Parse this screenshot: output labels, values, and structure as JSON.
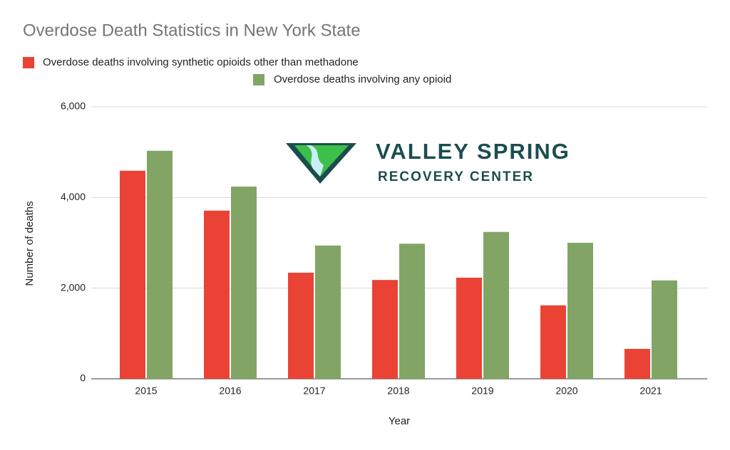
{
  "chart_data": {
    "type": "bar",
    "title": "Overdose Death Statistics in New York State",
    "x_label": "Year",
    "y_label": "Number of deaths",
    "categories": [
      "2015",
      "2016",
      "2017",
      "2018",
      "2019",
      "2020",
      "2021"
    ],
    "series": [
      {
        "name": "Overdose deaths involving synthetic opioids other than methadone",
        "color": "#ea4335",
        "values": [
          4590,
          3710,
          2340,
          2180,
          2230,
          1620,
          660
        ]
      },
      {
        "name": "Overdose deaths involving any opioid",
        "color": "#82a565",
        "values": [
          5030,
          4240,
          2940,
          2980,
          3240,
          3000,
          2170
        ]
      }
    ],
    "ylim": [
      0,
      6000
    ],
    "yticks": [
      0,
      {
        "value": 2000,
        "label": "2,000"
      },
      {
        "value": 4000,
        "label": "4,000"
      },
      {
        "value": 6000,
        "label": "6,000"
      }
    ],
    "grid": true
  },
  "logo": {
    "name": "VALLEY SPRING",
    "subtitle": "RECOVERY CENTER"
  }
}
